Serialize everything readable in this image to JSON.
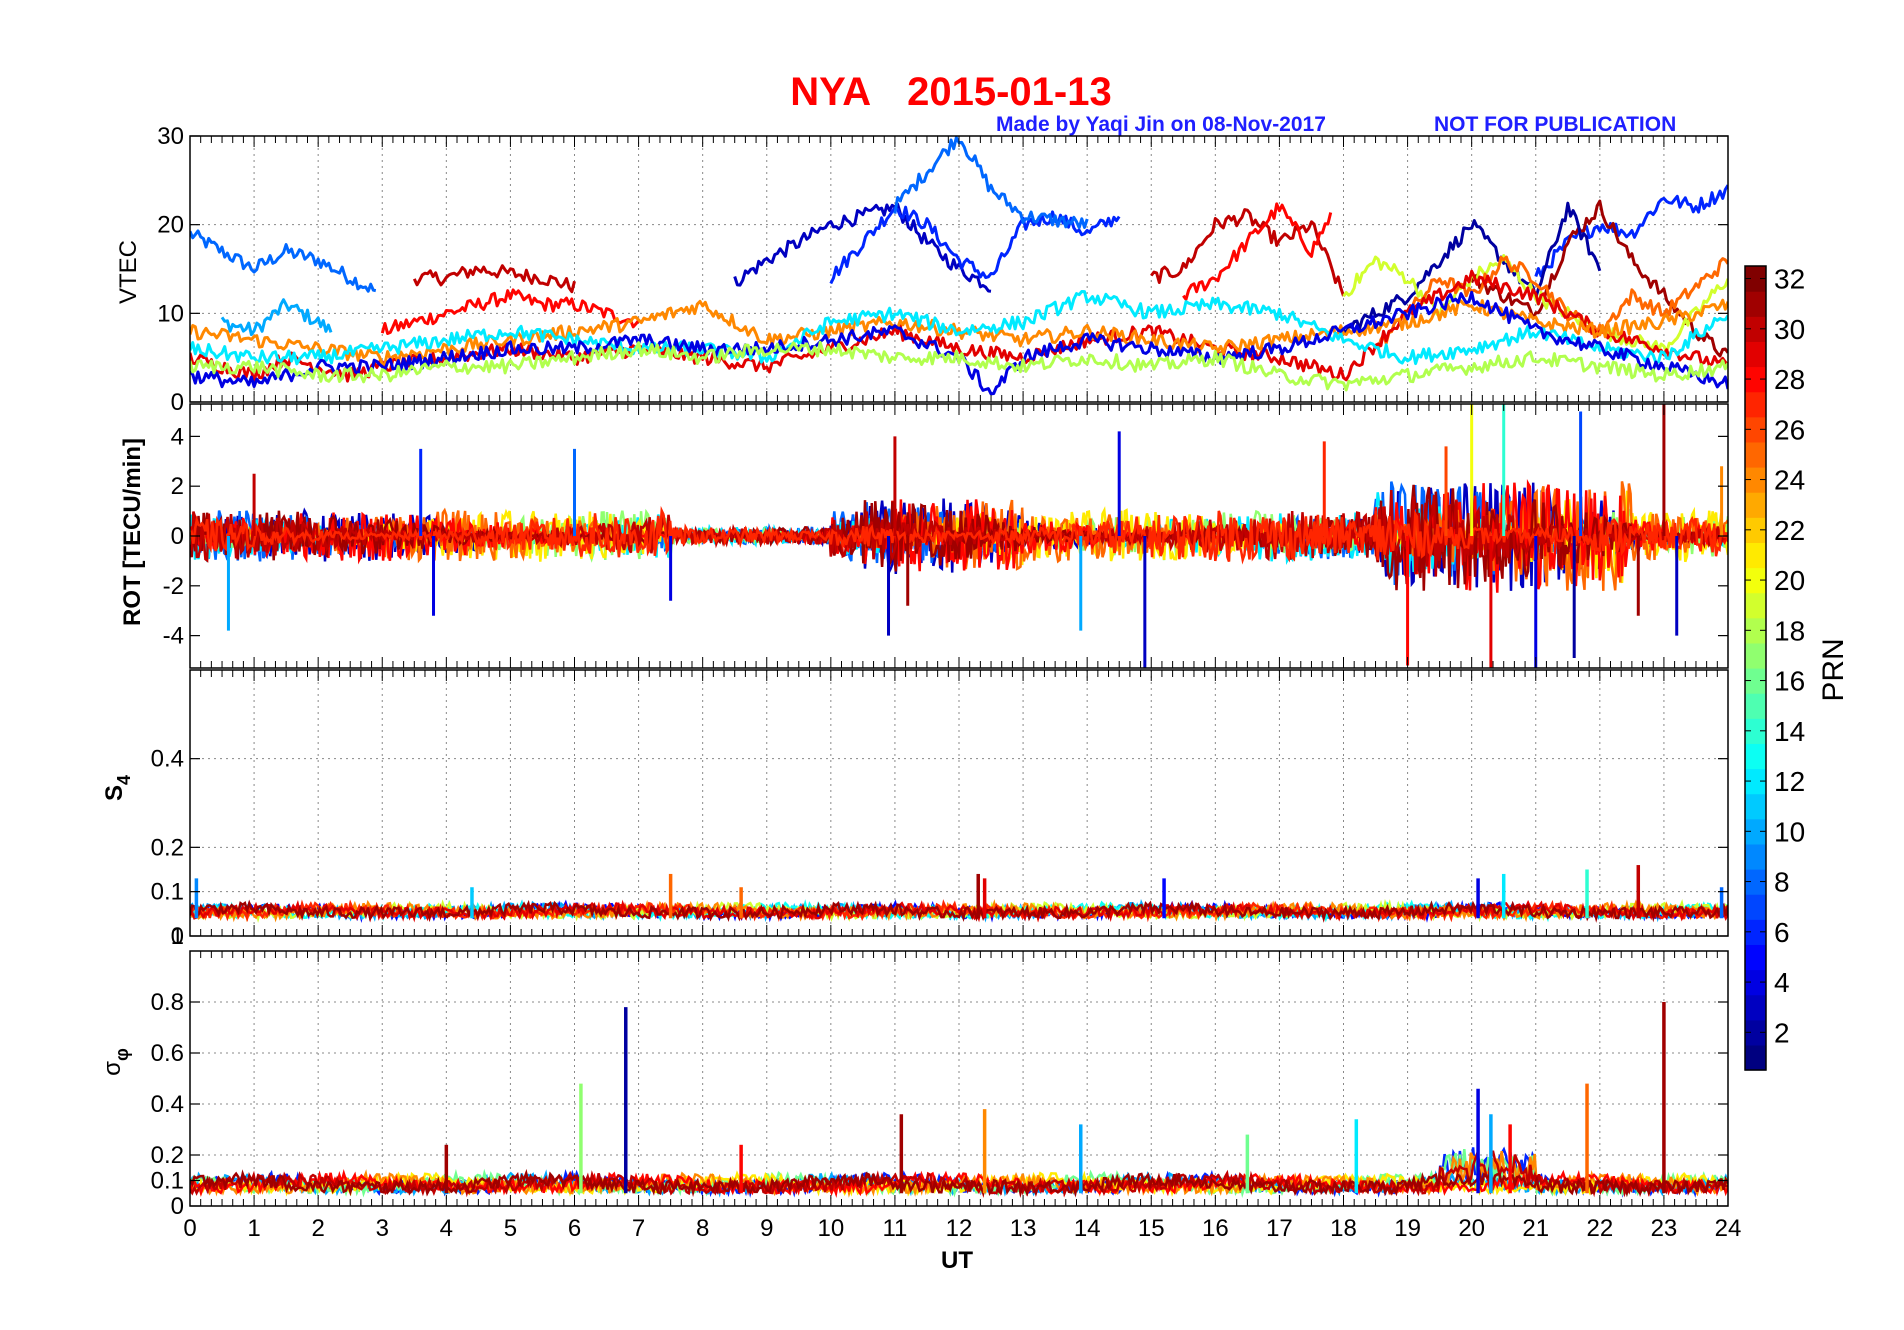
{
  "figure": {
    "station": "NYA",
    "date": "2015-01-13",
    "credit": "Made by Yaqi Jin on 08-Nov-2017",
    "notice": "NOT FOR PUBLICATION"
  },
  "colorbar": {
    "label": "PRN",
    "range": [
      1,
      32
    ],
    "ticks": [
      2,
      4,
      6,
      8,
      10,
      12,
      14,
      16,
      18,
      20,
      22,
      24,
      26,
      28,
      30,
      32
    ],
    "colormap": "jet"
  },
  "chart_data": [
    {
      "type": "line",
      "panel": "vtec",
      "title": "NYA   2015-01-13",
      "xlabel": "",
      "ylabel": "VTEC",
      "xlim": [
        0,
        24
      ],
      "ylim": [
        0,
        30
      ],
      "yticks": [
        0,
        10,
        20,
        30
      ],
      "grid": true,
      "series": [
        {
          "prn": 8,
          "x": [
            0,
            0.5,
            1,
            1.5,
            2,
            2.5,
            2.9
          ],
          "y": [
            19,
            17,
            15,
            17,
            16,
            14,
            12.5
          ]
        },
        {
          "prn": 10,
          "x": [
            0.5,
            1,
            1.5,
            2,
            2.2
          ],
          "y": [
            9,
            8,
            11,
            9,
            8
          ]
        },
        {
          "prn": 30,
          "x": [
            3.5,
            4,
            4.5,
            5,
            5.5,
            6
          ],
          "y": [
            14,
            14,
            15,
            14.5,
            14,
            13
          ]
        },
        {
          "prn": 28,
          "x": [
            3,
            3.5,
            4,
            4.5,
            5,
            5.5,
            6,
            6.5,
            7
          ],
          "y": [
            8,
            9,
            10,
            11,
            12,
            11,
            11,
            10,
            9
          ]
        },
        {
          "prn": 3,
          "x": [
            8.5,
            9,
            9.5,
            10,
            10.5,
            11,
            11.5,
            12,
            12.5
          ],
          "y": [
            13.5,
            16,
            18,
            20,
            21,
            22,
            18,
            15,
            13
          ]
        },
        {
          "prn": 6,
          "x": [
            10,
            10.5,
            11,
            11.5,
            12,
            12.5,
            13,
            13.5,
            14,
            14.5
          ],
          "y": [
            14,
            18,
            22,
            20,
            16,
            14,
            20,
            21,
            19,
            21
          ]
        },
        {
          "prn": 8,
          "x": [
            11,
            11.5,
            12,
            12.5,
            13,
            14
          ],
          "y": [
            22,
            26,
            30,
            24,
            21,
            20
          ]
        },
        {
          "prn": 30,
          "x": [
            15,
            15.5,
            16,
            16.5,
            17,
            17.5,
            18
          ],
          "y": [
            14,
            15,
            20,
            21,
            18,
            20,
            12
          ]
        },
        {
          "prn": 28,
          "x": [
            15.5,
            16,
            16.5,
            17,
            17.5,
            17.8
          ],
          "y": [
            12,
            14,
            18,
            22,
            17,
            21
          ]
        },
        {
          "prn": 6,
          "x": [
            21,
            21.5,
            22,
            22.5,
            23,
            23.5,
            24
          ],
          "y": [
            14,
            18,
            20,
            19,
            23,
            22,
            24
          ]
        },
        {
          "prn": 31,
          "x": [
            20,
            20.5,
            21,
            21.5,
            22,
            22.5,
            23,
            23.5,
            24
          ],
          "y": [
            14,
            12,
            10,
            18,
            22,
            16,
            12,
            8,
            5
          ]
        },
        {
          "prn": 2,
          "x": [
            18,
            19,
            20,
            20.5,
            21,
            21.5,
            22
          ],
          "y": [
            8,
            12,
            20,
            16,
            12,
            22,
            15
          ]
        },
        {
          "prn": 19,
          "x": [
            18,
            18.5,
            19,
            19.5,
            20,
            20.5,
            21,
            22,
            23,
            24
          ],
          "y": [
            12,
            16,
            14,
            10,
            14,
            16,
            12,
            8,
            6,
            14
          ]
        },
        {
          "prn": 25,
          "x": [
            18.5,
            19,
            19.5,
            20,
            20.5,
            21,
            21.5,
            22,
            22.5,
            23,
            24
          ],
          "y": [
            6,
            10,
            14,
            12,
            16,
            14,
            10,
            8,
            12,
            10,
            16
          ]
        },
        {
          "prn": 29,
          "x": [
            0,
            0.5,
            1,
            1.5,
            2,
            2.5,
            3,
            4,
            5,
            6,
            7,
            8,
            9,
            10,
            11,
            12,
            13,
            14,
            15,
            16,
            17,
            18,
            19,
            20,
            21,
            22,
            23,
            24
          ],
          "y": [
            5,
            4,
            3,
            5,
            4,
            3,
            4,
            5,
            6,
            5,
            6,
            5,
            4,
            6,
            8,
            6,
            5,
            7,
            8,
            6,
            5,
            3,
            10,
            14,
            12,
            8,
            6,
            4
          ]
        },
        {
          "prn": 24,
          "x": [
            0,
            1,
            2,
            3,
            4,
            5,
            6,
            7,
            8,
            9,
            10,
            11,
            12,
            13,
            14,
            15,
            16,
            17,
            18,
            19,
            20,
            21,
            22,
            23,
            24
          ],
          "y": [
            8,
            7,
            6,
            5,
            6,
            7,
            8,
            9,
            11,
            7,
            8,
            9,
            8,
            7,
            8,
            7,
            6,
            7,
            8,
            9,
            11,
            9,
            8,
            9,
            11
          ]
        },
        {
          "prn": 12,
          "x": [
            0,
            1,
            2,
            3,
            4,
            5,
            6,
            7,
            8,
            9,
            10,
            11,
            12,
            13,
            14,
            15,
            16,
            17,
            18,
            19,
            20,
            21,
            22,
            23,
            24
          ],
          "y": [
            6,
            5,
            5,
            6,
            7,
            8,
            7,
            6,
            6,
            5,
            9,
            10,
            8,
            9,
            12,
            10,
            11,
            10,
            7,
            5,
            6,
            8,
            6,
            5,
            10
          ]
        },
        {
          "prn": 4,
          "x": [
            0,
            1,
            2,
            3,
            4,
            5,
            6,
            7,
            8,
            9,
            10,
            11,
            12,
            12.5,
            13,
            14,
            15,
            16,
            17,
            18,
            19,
            20,
            21,
            22,
            23,
            24
          ],
          "y": [
            3,
            2,
            4,
            4,
            5,
            6,
            6,
            7,
            6,
            6,
            7,
            8,
            5,
            1,
            5,
            7,
            6,
            5,
            6,
            8,
            10,
            12,
            8,
            6,
            4,
            2
          ]
        },
        {
          "prn": 18,
          "x": [
            0,
            1,
            2,
            3,
            4,
            5,
            6,
            7,
            8,
            9,
            10,
            11,
            12,
            13,
            14,
            15,
            16,
            17,
            18,
            19,
            20,
            21,
            22,
            23,
            24
          ],
          "y": [
            4,
            4,
            3,
            3,
            4,
            4,
            5,
            6,
            5,
            6,
            6,
            5,
            5,
            4,
            5,
            4,
            5,
            3,
            2,
            3,
            4,
            5,
            4,
            3,
            4
          ]
        }
      ]
    },
    {
      "type": "line",
      "panel": "rot",
      "xlabel": "",
      "ylabel": "ROT [TECU/min]",
      "xlim": [
        0,
        24
      ],
      "ylim": [
        -5.3,
        5.3
      ],
      "yticks": [
        -4,
        -2,
        0,
        2,
        4
      ],
      "grid": false,
      "spikes": [
        {
          "x": 3.6,
          "y": 3.5,
          "prn": 6
        },
        {
          "x": 3.8,
          "y": -3.2,
          "prn": 4
        },
        {
          "x": 0.6,
          "y": -3.8,
          "prn": 10
        },
        {
          "x": 1.0,
          "y": 2.5,
          "prn": 30
        },
        {
          "x": 6.0,
          "y": 3.5,
          "prn": 8
        },
        {
          "x": 7.5,
          "y": -2.6,
          "prn": 4
        },
        {
          "x": 11.0,
          "y": 4.0,
          "prn": 30
        },
        {
          "x": 10.9,
          "y": -4.0,
          "prn": 3
        },
        {
          "x": 11.2,
          "y": -2.8,
          "prn": 31
        },
        {
          "x": 14.5,
          "y": 4.2,
          "prn": 4
        },
        {
          "x": 14.9,
          "y": -5.3,
          "prn": 3
        },
        {
          "x": 13.9,
          "y": -3.8,
          "prn": 10
        },
        {
          "x": 17.7,
          "y": 3.8,
          "prn": 27
        },
        {
          "x": 19.0,
          "y": -5.2,
          "prn": 28
        },
        {
          "x": 20.0,
          "y": 5.3,
          "prn": 20
        },
        {
          "x": 20.3,
          "y": -5.3,
          "prn": 29
        },
        {
          "x": 20.5,
          "y": 5.3,
          "prn": 14
        },
        {
          "x": 21.0,
          "y": -5.3,
          "prn": 4
        },
        {
          "x": 21.7,
          "y": 5.0,
          "prn": 7
        },
        {
          "x": 21.6,
          "y": -4.9,
          "prn": 2
        },
        {
          "x": 22.6,
          "y": -3.2,
          "prn": 31
        },
        {
          "x": 23.0,
          "y": 5.3,
          "prn": 31
        },
        {
          "x": 23.2,
          "y": -4.0,
          "prn": 3
        },
        {
          "x": 19.6,
          "y": 3.6,
          "prn": 26
        },
        {
          "x": 23.9,
          "y": 2.8,
          "prn": 24
        }
      ]
    },
    {
      "type": "line",
      "panel": "s4",
      "xlabel": "",
      "ylabel": "S4",
      "xlim": [
        0,
        24
      ],
      "ylim": [
        0,
        0.6
      ],
      "yticks": [
        0,
        0.1,
        0.2,
        0.4
      ],
      "ytick_labels": [
        "0",
        "0.1",
        "0.2",
        "0.4"
      ],
      "top_axis_tick": "1",
      "grid": true,
      "spikes": [
        {
          "x": 0.1,
          "y": 0.13,
          "prn": 9
        },
        {
          "x": 4.4,
          "y": 0.11,
          "prn": 11
        },
        {
          "x": 7.5,
          "y": 0.14,
          "prn": 25
        },
        {
          "x": 8.6,
          "y": 0.11,
          "prn": 25
        },
        {
          "x": 12.3,
          "y": 0.14,
          "prn": 31
        },
        {
          "x": 12.4,
          "y": 0.13,
          "prn": 29
        },
        {
          "x": 15.2,
          "y": 0.13,
          "prn": 5
        },
        {
          "x": 20.1,
          "y": 0.13,
          "prn": 4
        },
        {
          "x": 20.5,
          "y": 0.14,
          "prn": 12
        },
        {
          "x": 21.8,
          "y": 0.15,
          "prn": 14
        },
        {
          "x": 22.6,
          "y": 0.16,
          "prn": 30
        },
        {
          "x": 23.9,
          "y": 0.11,
          "prn": 8
        }
      ]
    },
    {
      "type": "line",
      "panel": "sigma_phi",
      "xlabel": "UT",
      "ylabel": "σφ",
      "xlim": [
        0,
        24
      ],
      "ylim": [
        0,
        1.0
      ],
      "yticks": [
        0,
        0.1,
        0.2,
        0.4,
        0.6,
        0.8
      ],
      "ytick_labels": [
        "0",
        "0.1",
        "0.2",
        "0.4",
        "0.6",
        "0.8"
      ],
      "xticks": [
        0,
        1,
        2,
        3,
        4,
        5,
        6,
        7,
        8,
        9,
        10,
        11,
        12,
        13,
        14,
        15,
        16,
        17,
        18,
        19,
        20,
        21,
        22,
        23,
        24
      ],
      "grid": true,
      "spikes": [
        {
          "x": 6.8,
          "y": 0.78,
          "prn": 2
        },
        {
          "x": 6.1,
          "y": 0.48,
          "prn": 17
        },
        {
          "x": 4.0,
          "y": 0.24,
          "prn": 31
        },
        {
          "x": 8.6,
          "y": 0.24,
          "prn": 28
        },
        {
          "x": 11.1,
          "y": 0.36,
          "prn": 31
        },
        {
          "x": 12.4,
          "y": 0.38,
          "prn": 24
        },
        {
          "x": 13.9,
          "y": 0.32,
          "prn": 10
        },
        {
          "x": 20.1,
          "y": 0.46,
          "prn": 4
        },
        {
          "x": 20.3,
          "y": 0.36,
          "prn": 10
        },
        {
          "x": 20.6,
          "y": 0.32,
          "prn": 28
        },
        {
          "x": 21.8,
          "y": 0.48,
          "prn": 25
        },
        {
          "x": 23.0,
          "y": 0.8,
          "prn": 31
        },
        {
          "x": 18.2,
          "y": 0.34,
          "prn": 12
        },
        {
          "x": 16.5,
          "y": 0.28,
          "prn": 16
        }
      ]
    }
  ]
}
